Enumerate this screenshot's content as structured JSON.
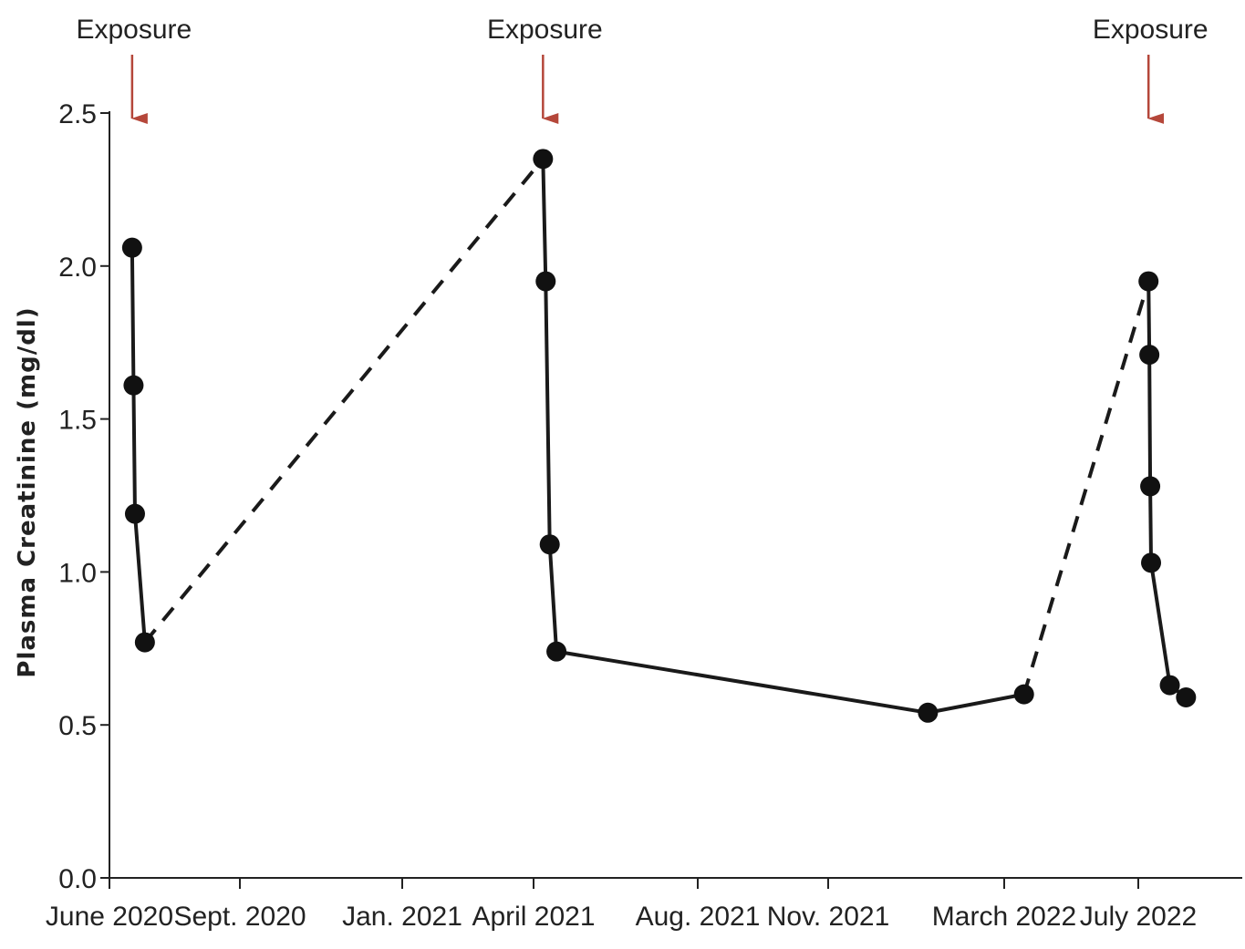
{
  "chart_data": {
    "type": "line",
    "ylabel": "Plasma Creatinine (mg/dl)",
    "ylim": [
      0.0,
      2.5
    ],
    "yticks": [
      {
        "value": 0.0,
        "label": "0.0"
      },
      {
        "value": 0.5,
        "label": "0.5"
      },
      {
        "value": 1.0,
        "label": "1.0"
      },
      {
        "value": 1.5,
        "label": "1.5"
      },
      {
        "value": 2.0,
        "label": "2.0"
      },
      {
        "value": 2.5,
        "label": "2.5"
      }
    ],
    "xlim": [
      "2020-06-01",
      "2022-10-31"
    ],
    "xticks": [
      {
        "date": "2020-06-01",
        "label": "June 2020"
      },
      {
        "date": "2020-09-01",
        "label": "Sept. 2020"
      },
      {
        "date": "2021-01-01",
        "label": "Jan. 2021"
      },
      {
        "date": "2021-04-01",
        "label": "April 2021"
      },
      {
        "date": "2021-08-01",
        "label": "Aug. 2021"
      },
      {
        "date": "2021-11-01",
        "label": "Nov. 2021"
      },
      {
        "date": "2022-03-01",
        "label": "March 2022"
      },
      {
        "date": "2022-07-01",
        "label": "July 2022"
      }
    ],
    "points": [
      {
        "date": "2020-06-17",
        "value": 2.06
      },
      {
        "date": "2020-06-18",
        "value": 1.61
      },
      {
        "date": "2020-06-19",
        "value": 1.19
      },
      {
        "date": "2020-06-26",
        "value": 0.77
      },
      {
        "date": "2021-04-08",
        "value": 2.35
      },
      {
        "date": "2021-04-10",
        "value": 1.95
      },
      {
        "date": "2021-04-13",
        "value": 1.09
      },
      {
        "date": "2021-04-18",
        "value": 0.74
      },
      {
        "date": "2022-01-08",
        "value": 0.54
      },
      {
        "date": "2022-03-19",
        "value": 0.6
      },
      {
        "date": "2022-07-13",
        "value": 1.95
      },
      {
        "date": "2022-07-14",
        "value": 1.71
      },
      {
        "date": "2022-07-15",
        "value": 1.28
      },
      {
        "date": "2022-07-16",
        "value": 1.03
      },
      {
        "date": "2022-08-07",
        "value": 0.63
      },
      {
        "date": "2022-08-26",
        "value": 0.59
      }
    ],
    "segments": [
      {
        "from": 0,
        "to": 1,
        "style": "solid"
      },
      {
        "from": 1,
        "to": 2,
        "style": "solid"
      },
      {
        "from": 2,
        "to": 3,
        "style": "solid"
      },
      {
        "from": 3,
        "to": 4,
        "style": "dashed"
      },
      {
        "from": 4,
        "to": 5,
        "style": "solid"
      },
      {
        "from": 5,
        "to": 6,
        "style": "solid"
      },
      {
        "from": 6,
        "to": 7,
        "style": "solid"
      },
      {
        "from": 7,
        "to": 8,
        "style": "solid"
      },
      {
        "from": 8,
        "to": 9,
        "style": "solid"
      },
      {
        "from": 9,
        "to": 10,
        "style": "dashed"
      },
      {
        "from": 10,
        "to": 11,
        "style": "solid"
      },
      {
        "from": 11,
        "to": 12,
        "style": "solid"
      },
      {
        "from": 12,
        "to": 13,
        "style": "solid"
      },
      {
        "from": 13,
        "to": 14,
        "style": "solid"
      },
      {
        "from": 14,
        "to": 15,
        "style": "solid"
      }
    ],
    "annotations": [
      {
        "label": "Exposure",
        "date": "2020-06-17"
      },
      {
        "label": "Exposure",
        "date": "2021-04-08"
      },
      {
        "label": "Exposure",
        "date": "2022-07-13"
      }
    ],
    "colors": {
      "line": "#1a1a1a",
      "marker": "#111111",
      "arrow": "#b5473a",
      "axis": "#222222"
    }
  }
}
